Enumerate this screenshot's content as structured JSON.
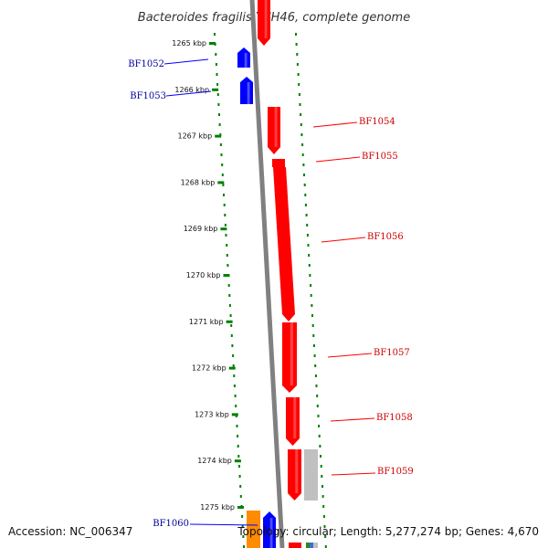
{
  "title": "Bacteroides fragilis YCH46, complete genome",
  "footer": {
    "accession": "Accession: NC_006347",
    "topology": "Topology: circular; Length: 5,277,274 bp; Genes: 4,670"
  },
  "colors": {
    "forward_gene": "#ff0000",
    "reverse_gene": "#0000ff",
    "backbone": "#808080",
    "tick": "#008000",
    "other_feature": "#c0c0c0",
    "orange_feature": "#ff8c00"
  },
  "ticks": [
    "1265 kbp",
    "1266 kbp",
    "1267 kbp",
    "1268 kbp",
    "1269 kbp",
    "1270 kbp",
    "1271 kbp",
    "1272 kbp",
    "1273 kbp",
    "1274 kbp",
    "1275 kbp"
  ],
  "genes": [
    {
      "id": "BF1052",
      "strand": "reverse"
    },
    {
      "id": "BF1053",
      "strand": "reverse"
    },
    {
      "id": "BF1054",
      "strand": "forward"
    },
    {
      "id": "BF1055",
      "strand": "forward"
    },
    {
      "id": "BF1056",
      "strand": "forward"
    },
    {
      "id": "BF1057",
      "strand": "forward"
    },
    {
      "id": "BF1058",
      "strand": "forward"
    },
    {
      "id": "BF1059",
      "strand": "forward"
    },
    {
      "id": "BF1060",
      "strand": "reverse"
    }
  ]
}
